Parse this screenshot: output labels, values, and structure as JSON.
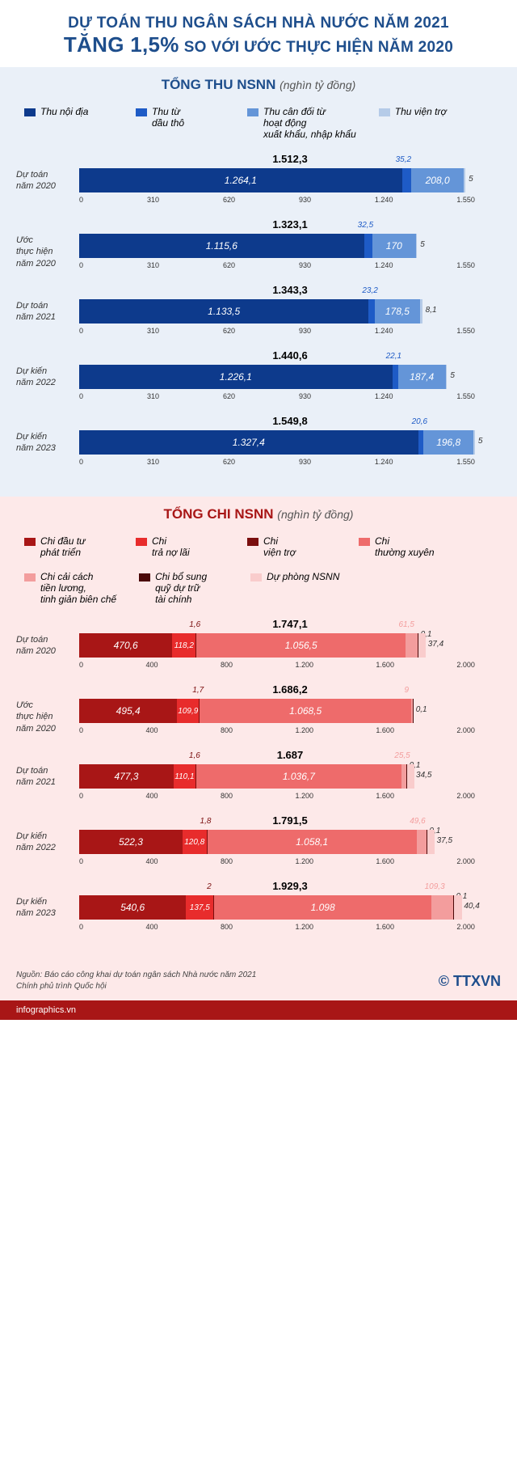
{
  "header": {
    "line1": "DỰ TOÁN THU NGÂN SÁCH NHÀ NƯỚC NĂM 2021",
    "big": "TĂNG 1,5%",
    "rest": "SO VỚI ƯỚC THỰC HIỆN NĂM 2020"
  },
  "thu": {
    "title": "TỔNG THU NSNN",
    "unit": "(nghìn tỷ đồng)",
    "max": 1550,
    "ticks": [
      "0",
      "310",
      "620",
      "930",
      "1.240",
      "1.550"
    ],
    "legend": [
      {
        "label": "Thu nội địa",
        "color": "#0d3a8c"
      },
      {
        "label": "Thu từ\ndầu thô",
        "color": "#1e5bc6"
      },
      {
        "label": "Thu cân đối từ\nhoạt động\nxuất khẩu, nhập khẩu",
        "color": "#6495d8"
      },
      {
        "label": "Thu viện trợ",
        "color": "#b5cbe8"
      }
    ],
    "rows": [
      {
        "label": "Dự toán\nnăm 2020",
        "total": "1.512,3",
        "segs": [
          {
            "v": 1264.1,
            "t": "1.264,1",
            "c": "#0d3a8c"
          },
          {
            "v": 35.2,
            "t": "35,2",
            "c": "#1e5bc6",
            "top": true
          },
          {
            "v": 208.0,
            "t": "208,0",
            "c": "#6495d8"
          },
          {
            "v": 5,
            "t": "5",
            "c": "#b5cbe8",
            "top": true,
            "right": true
          }
        ]
      },
      {
        "label": "Ước\nthực hiện\nnăm 2020",
        "total": "1.323,1",
        "segs": [
          {
            "v": 1115.6,
            "t": "1.115,6",
            "c": "#0d3a8c"
          },
          {
            "v": 32.5,
            "t": "32,5",
            "c": "#1e5bc6",
            "top": true
          },
          {
            "v": 170,
            "t": "170",
            "c": "#6495d8"
          },
          {
            "v": 5,
            "t": "5",
            "c": "#b5cbe8",
            "top": true,
            "right": true
          }
        ]
      },
      {
        "label": "Dự toán\nnăm 2021",
        "total": "1.343,3",
        "segs": [
          {
            "v": 1133.5,
            "t": "1.133,5",
            "c": "#0d3a8c"
          },
          {
            "v": 23.2,
            "t": "23,2",
            "c": "#1e5bc6",
            "top": true
          },
          {
            "v": 178.5,
            "t": "178,5",
            "c": "#6495d8"
          },
          {
            "v": 8.1,
            "t": "8,1",
            "c": "#b5cbe8",
            "top": true,
            "right": true
          }
        ]
      },
      {
        "label": "Dự kiến\nnăm 2022",
        "total": "1.440,6",
        "segs": [
          {
            "v": 1226.1,
            "t": "1.226,1",
            "c": "#0d3a8c"
          },
          {
            "v": 22.1,
            "t": "22,1",
            "c": "#1e5bc6",
            "top": true
          },
          {
            "v": 187.4,
            "t": "187,4",
            "c": "#6495d8"
          },
          {
            "v": 5,
            "t": "5",
            "c": "#b5cbe8",
            "top": true,
            "right": true
          }
        ]
      },
      {
        "label": "Dự kiến\nnăm 2023",
        "total": "1.549,8",
        "segs": [
          {
            "v": 1327.4,
            "t": "1.327,4",
            "c": "#0d3a8c"
          },
          {
            "v": 20.6,
            "t": "20,6",
            "c": "#1e5bc6",
            "top": true
          },
          {
            "v": 196.8,
            "t": "196,8",
            "c": "#6495d8"
          },
          {
            "v": 5,
            "t": "5",
            "c": "#b5cbe8",
            "top": true,
            "right": true
          }
        ]
      }
    ]
  },
  "chi": {
    "title": "TỔNG CHI NSNN",
    "unit": "(nghìn tỷ đồng)",
    "max": 2000,
    "ticks": [
      "0",
      "400",
      "800",
      "1.200",
      "1.600",
      "2.000"
    ],
    "legend": [
      {
        "label": "Chi đầu tư\nphát triển",
        "color": "#a81616"
      },
      {
        "label": "Chi\ntrả nợ lãi",
        "color": "#e82c2c"
      },
      {
        "label": "Chi\nviện trợ",
        "color": "#7a0e0e"
      },
      {
        "label": "Chi\nthường xuyên",
        "color": "#ee6b6b"
      },
      {
        "label": "Chi cải cách\ntiền lương,\ntinh giản biên chế",
        "color": "#f39d9d"
      },
      {
        "label": "Chi bổ sung\nquỹ dự trữ\ntài chính",
        "color": "#4a0808"
      },
      {
        "label": "Dự phòng NSNN",
        "color": "#f9cccc"
      }
    ],
    "rows": [
      {
        "label": "Dự toán\nnăm 2020",
        "total": "1.747,1",
        "segs": [
          {
            "v": 470.6,
            "t": "470,6",
            "c": "#a81616"
          },
          {
            "v": 118.2,
            "t": "118,2",
            "c": "#e82c2c"
          },
          {
            "v": 1.6,
            "t": "1,6",
            "c": "#7a0e0e",
            "top": true
          },
          {
            "v": 1056.5,
            "t": "1.056,5",
            "c": "#ee6b6b"
          },
          {
            "v": 61.5,
            "t": "61,5",
            "c": "#f39d9d",
            "top": true
          },
          {
            "v": 0.1,
            "t": "0,1",
            "c": "#4a0808",
            "top": true,
            "right2": true
          },
          {
            "v": 37.4,
            "t": "37,4",
            "c": "#f9cccc",
            "right": true
          }
        ]
      },
      {
        "label": "Ước\nthực hiện\nnăm 2020",
        "total": "1.686,2",
        "segs": [
          {
            "v": 495.4,
            "t": "495,4",
            "c": "#a81616"
          },
          {
            "v": 109.9,
            "t": "109,9",
            "c": "#e82c2c"
          },
          {
            "v": 1.7,
            "t": "1,7",
            "c": "#7a0e0e",
            "top": true
          },
          {
            "v": 1068.5,
            "t": "1.068,5",
            "c": "#ee6b6b"
          },
          {
            "v": 9,
            "t": "9",
            "c": "#f39d9d",
            "top": true
          },
          {
            "v": 0.1,
            "t": "0,1",
            "c": "#4a0808",
            "right": true
          }
        ]
      },
      {
        "label": "Dự toán\nnăm 2021",
        "total": "1.687",
        "segs": [
          {
            "v": 477.3,
            "t": "477,3",
            "c": "#a81616"
          },
          {
            "v": 110.1,
            "t": "110,1",
            "c": "#e82c2c"
          },
          {
            "v": 1.6,
            "t": "1,6",
            "c": "#7a0e0e",
            "top": true
          },
          {
            "v": 1036.7,
            "t": "1.036,7",
            "c": "#ee6b6b"
          },
          {
            "v": 25.5,
            "t": "25,5",
            "c": "#f39d9d",
            "top": true
          },
          {
            "v": 0.1,
            "t": "0,1",
            "c": "#4a0808",
            "top": true,
            "right2": true
          },
          {
            "v": 34.5,
            "t": "34,5",
            "c": "#f9cccc",
            "right": true
          }
        ]
      },
      {
        "label": "Dự kiến\nnăm 2022",
        "total": "1.791,5",
        "segs": [
          {
            "v": 522.3,
            "t": "522,3",
            "c": "#a81616"
          },
          {
            "v": 120.8,
            "t": "120,8",
            "c": "#e82c2c"
          },
          {
            "v": 1.8,
            "t": "1,8",
            "c": "#7a0e0e",
            "top": true
          },
          {
            "v": 1058.1,
            "t": "1.058,1",
            "c": "#ee6b6b"
          },
          {
            "v": 49.6,
            "t": "49,6",
            "c": "#f39d9d",
            "top": true
          },
          {
            "v": 0.1,
            "t": "0,1",
            "c": "#4a0808",
            "top": true,
            "right2": true
          },
          {
            "v": 37.5,
            "t": "37,5",
            "c": "#f9cccc",
            "right": true
          }
        ]
      },
      {
        "label": "Dự kiến\nnăm 2023",
        "total": "1.929,3",
        "segs": [
          {
            "v": 540.6,
            "t": "540,6",
            "c": "#a81616"
          },
          {
            "v": 137.5,
            "t": "137,5",
            "c": "#e82c2c"
          },
          {
            "v": 2,
            "t": "2",
            "c": "#7a0e0e",
            "top": true
          },
          {
            "v": 1098,
            "t": "1.098",
            "c": "#ee6b6b"
          },
          {
            "v": 109.3,
            "t": "109,3",
            "c": "#f39d9d",
            "top": true
          },
          {
            "v": 0.1,
            "t": "0,1",
            "c": "#4a0808",
            "top": true,
            "right2": true
          },
          {
            "v": 40.4,
            "t": "40,4",
            "c": "#f9cccc",
            "right": true
          }
        ]
      }
    ]
  },
  "footer": {
    "source": "Nguồn: Báo cáo công khai dự toán ngân sách Nhà nước năm 2021\nChính phủ trình Quốc hội",
    "logo": "TTXVN",
    "url": "infographics.vn"
  }
}
